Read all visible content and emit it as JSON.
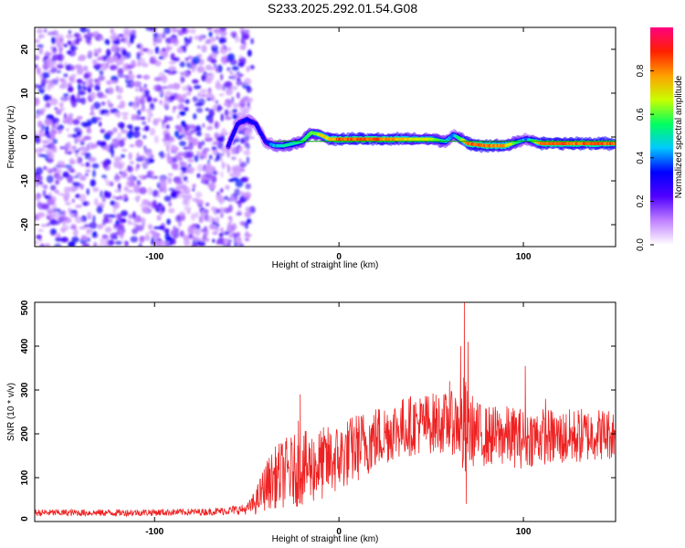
{
  "title": "S233.2025.292.01.54.G08",
  "chart_data": [
    {
      "type": "heatmap",
      "title": "S233.2025.292.01.54.G08",
      "xlabel": "Height of straight line (km)",
      "ylabel": "Frequency (Hz)",
      "xlim": [
        -165,
        150
      ],
      "ylim": [
        -25,
        25
      ],
      "xticks": [
        -100,
        0,
        100
      ],
      "yticks": [
        -20,
        -10,
        0,
        10,
        20
      ],
      "grid": false,
      "colorbar": {
        "label": "Normalized spectral amplitude",
        "range": [
          0,
          1
        ],
        "ticks": [
          0.0,
          0.2,
          0.4,
          0.6,
          0.8
        ],
        "colors": [
          "#ffffff",
          "#c080ff",
          "#5000ff",
          "#0000ff",
          "#00c8ff",
          "#00ff60",
          "#c8ff00",
          "#ffa000",
          "#ff2000",
          "#ff0080"
        ]
      },
      "noise_region": {
        "x": [
          -165,
          -55
        ],
        "y": [
          -25,
          25
        ]
      },
      "ridge": {
        "x": [
          -60,
          -55,
          -50,
          -45,
          -40,
          -35,
          -30,
          -20,
          -15,
          -10,
          -5,
          0,
          10,
          20,
          30,
          40,
          50,
          58,
          62,
          70,
          80,
          90,
          98,
          102,
          110,
          120,
          130,
          140,
          150
        ],
        "freq": [
          -2,
          3,
          4,
          3,
          -1,
          -2,
          -2,
          -1,
          1,
          0.5,
          -0.5,
          -0.5,
          -0.5,
          -0.5,
          -0.5,
          -0.5,
          -0.5,
          -1,
          0.5,
          -1.5,
          -2,
          -2,
          -1,
          -0.5,
          -1.5,
          -1.5,
          -1.5,
          -1.5,
          -1.5
        ],
        "amp": [
          0.3,
          0.3,
          0.35,
          0.3,
          0.3,
          0.45,
          0.5,
          0.55,
          0.6,
          0.7,
          0.75,
          0.85,
          0.85,
          0.85,
          0.8,
          0.7,
          0.7,
          0.5,
          0.4,
          0.85,
          0.85,
          0.8,
          0.5,
          0.4,
          0.85,
          0.85,
          0.85,
          0.85,
          0.85
        ]
      },
      "reference_line": {
        "freq": -1,
        "x": [
          -35,
          150
        ],
        "color": "#00a000"
      }
    },
    {
      "type": "line",
      "xlabel": "Height of straight line (km)",
      "ylabel": "SNR (10 * v/v)",
      "xlim": [
        -165,
        150
      ],
      "ylim": [
        0,
        500
      ],
      "xticks": [
        -100,
        0,
        100
      ],
      "yticks": [
        0,
        100,
        200,
        300,
        400,
        500
      ],
      "grid": false,
      "color": "#ee2222",
      "envelope": {
        "x": [
          -165,
          -120,
          -70,
          -50,
          -45,
          -40,
          -35,
          -30,
          -20,
          -10,
          0,
          10,
          20,
          30,
          40,
          50,
          60,
          65,
          68,
          70,
          75,
          80,
          90,
          100,
          110,
          120,
          130,
          140,
          150
        ],
        "mean": [
          20,
          20,
          22,
          28,
          45,
          80,
          100,
          110,
          120,
          130,
          145,
          170,
          190,
          210,
          220,
          225,
          225,
          225,
          200,
          215,
          200,
          195,
          195,
          190,
          195,
          190,
          195,
          200,
          200
        ],
        "amp": [
          8,
          8,
          8,
          12,
          30,
          55,
          70,
          80,
          85,
          85,
          80,
          80,
          75,
          70,
          70,
          70,
          70,
          80,
          140,
          90,
          75,
          70,
          70,
          70,
          65,
          65,
          65,
          60,
          60
        ]
      },
      "spikes": [
        {
          "x": -21,
          "y": 290
        },
        {
          "x": -22,
          "y": 230
        },
        {
          "x": 60,
          "y": 320
        },
        {
          "x": 66,
          "y": 400
        },
        {
          "x": 68,
          "y": 505
        },
        {
          "x": 69,
          "y": 40
        },
        {
          "x": 70,
          "y": 410
        },
        {
          "x": 101,
          "y": 355
        },
        {
          "x": 112,
          "y": 280
        }
      ]
    }
  ]
}
